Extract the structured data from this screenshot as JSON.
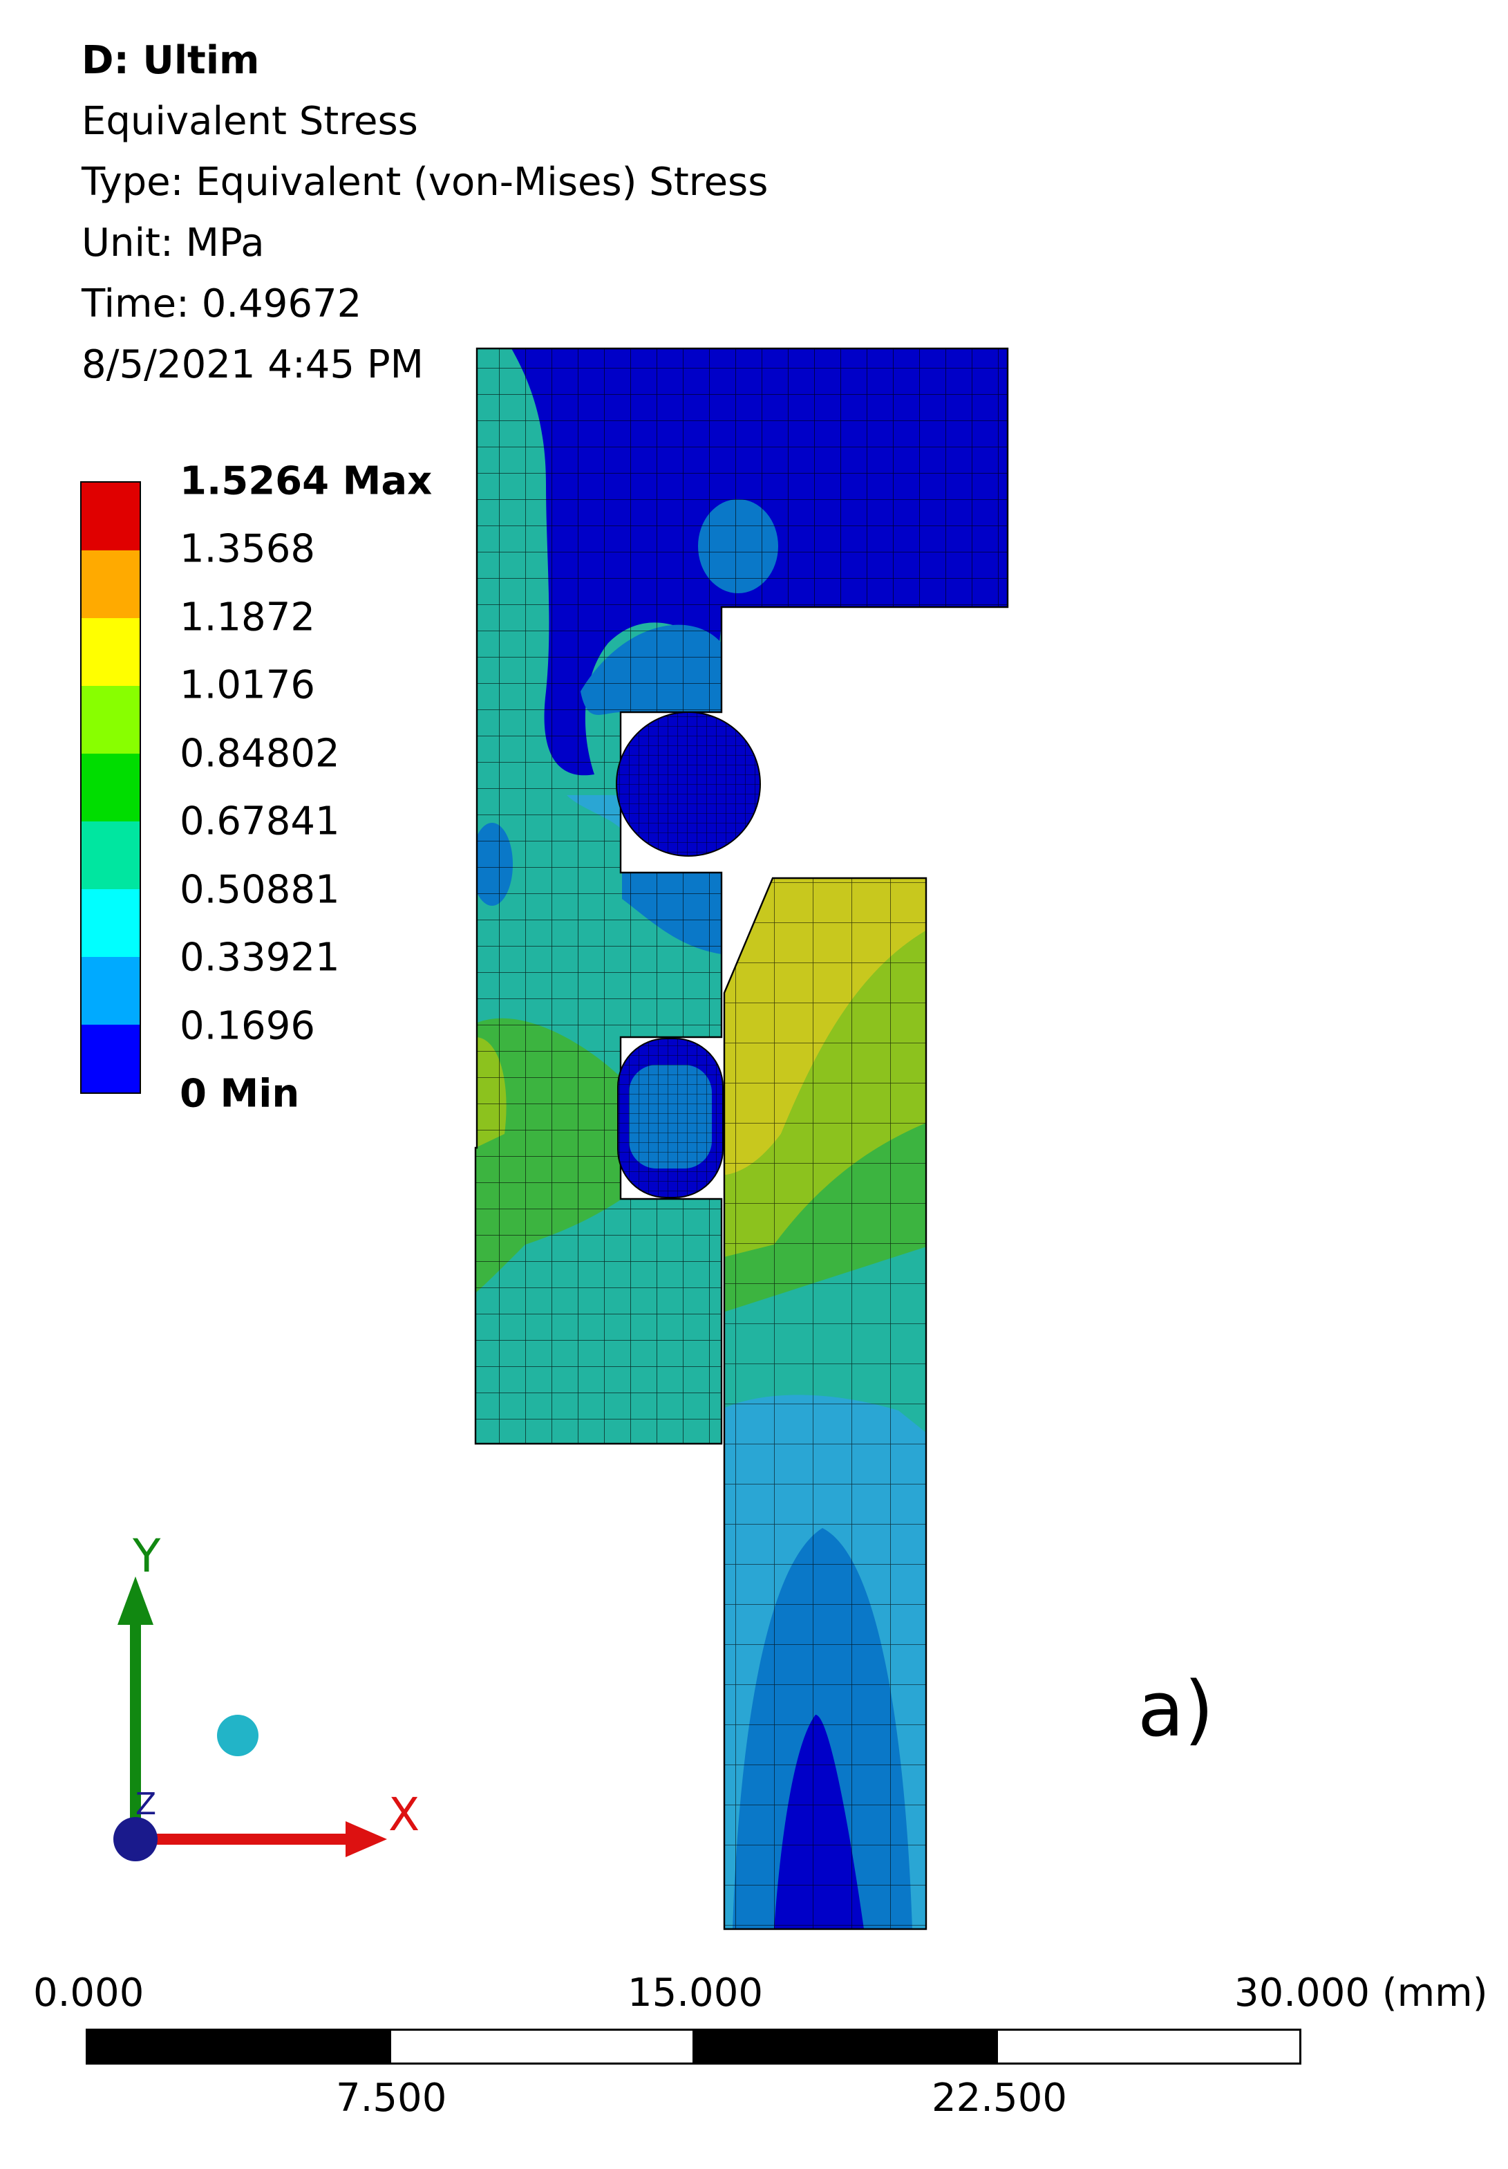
{
  "header": {
    "title": "D: Ultim",
    "result_name": "Equivalent Stress",
    "type_line": "Type: Equivalent (von-Mises) Stress",
    "unit_line": "Unit: MPa",
    "time_line": "Time: 0.49672",
    "date_line": "8/5/2021 4:45 PM"
  },
  "legend": {
    "labels": [
      "1.5264 Max",
      "1.3568",
      "1.1872",
      "1.0176",
      "0.84802",
      "0.67841",
      "0.50881",
      "0.33921",
      "0.1696",
      "0 Min"
    ],
    "colors": [
      "#e00000",
      "#ffaa00",
      "#ffff00",
      "#88ff00",
      "#00dd00",
      "#00e6a0",
      "#00ffff",
      "#00aaff",
      "#0000ff"
    ]
  },
  "model_colors": {
    "dark_blue": "#0000c8",
    "blue": "#0a78c8",
    "light_blue": "#2aa6d4",
    "cyan_green": "#22b4a0",
    "green": "#3cb440",
    "yellow_green": "#8cc21e",
    "olive_yellow": "#c8c81e"
  },
  "triad": {
    "x_label": "X",
    "y_label": "Y",
    "z_label": "Z"
  },
  "panel_label": "a)",
  "scale_bar": {
    "top_labels": [
      "0.000",
      "15.000",
      "30.000 (mm)"
    ],
    "bottom_labels": [
      "7.500",
      "22.500"
    ]
  }
}
